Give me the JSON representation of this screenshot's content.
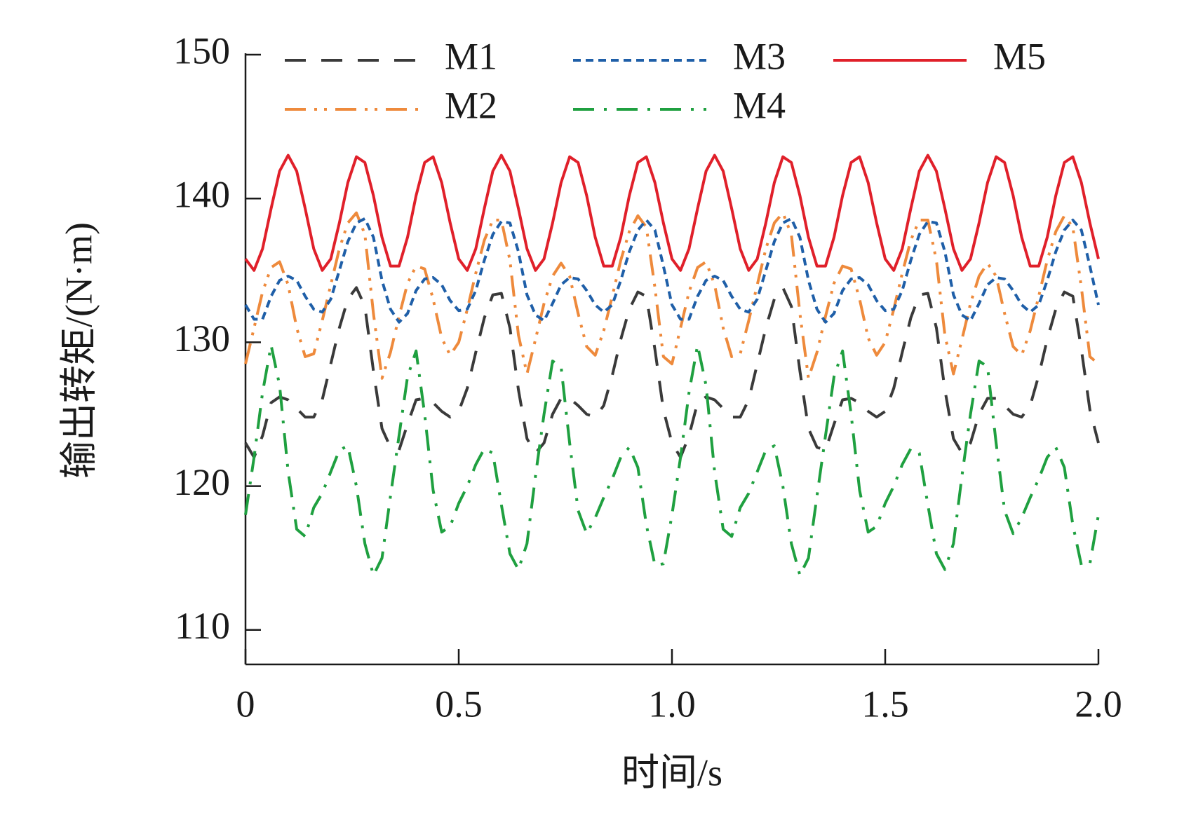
{
  "chart_data": {
    "type": "line",
    "xlabel": "时间/s",
    "ylabel": "输出转矩/(N·m)",
    "xlim": [
      0,
      2
    ],
    "ylim": [
      107.6,
      150
    ],
    "xticks": [
      0,
      0.5,
      {
        "value": 1,
        "label": "1.0"
      },
      1.5,
      {
        "value": 2,
        "label": "2.0"
      }
    ],
    "yticks": [
      110,
      120,
      130,
      140,
      150
    ],
    "x": [
      0,
      0.02,
      0.04,
      0.06,
      0.08,
      0.1,
      0.12,
      0.14,
      0.16,
      0.18,
      0.2,
      0.22,
      0.24,
      0.26,
      0.28,
      0.3,
      0.32,
      0.34,
      0.36,
      0.38,
      0.4,
      0.42,
      0.44,
      0.46,
      0.48,
      0.5,
      0.52,
      0.54,
      0.56,
      0.58,
      0.6,
      0.62,
      0.64,
      0.66,
      0.68,
      0.7,
      0.72,
      0.74,
      0.76,
      0.78,
      0.8,
      0.82,
      0.84,
      0.86,
      0.88,
      0.9,
      0.92,
      0.94,
      0.96,
      0.98,
      1,
      1.02,
      1.04,
      1.06,
      1.08,
      1.1,
      1.12,
      1.14,
      1.16,
      1.18,
      1.2,
      1.22,
      1.24,
      1.26,
      1.28,
      1.3,
      1.32,
      1.34,
      1.36,
      1.38,
      1.4,
      1.42,
      1.44,
      1.46,
      1.48,
      1.5,
      1.52,
      1.54,
      1.56,
      1.58,
      1.6,
      1.62,
      1.64,
      1.66,
      1.68,
      1.7,
      1.72,
      1.74,
      1.76,
      1.78,
      1.8,
      1.82,
      1.84,
      1.86,
      1.88,
      1.9,
      1.92,
      1.94,
      1.96,
      1.98,
      2
    ],
    "series": [
      {
        "name": "M1",
        "color": "#3a3a3a",
        "linestyle": "dashed",
        "values": [
          123.0,
          122.0,
          123.5,
          125.8,
          126.2,
          126.0,
          125.4,
          124.8,
          124.8,
          126.0,
          128.5,
          131.0,
          133.0,
          133.8,
          132.5,
          128.0,
          124.0,
          122.7,
          122.5,
          124.3,
          126.0,
          126.1,
          125.8,
          125.2,
          124.8,
          125.2,
          126.8,
          129.3,
          131.7,
          133.3,
          133.4,
          131.0,
          126.7,
          123.3,
          122.3,
          123.0,
          125.0,
          126.1,
          126.1,
          125.6,
          125.0,
          124.8,
          125.6,
          127.7,
          130.2,
          132.3,
          133.5,
          133.2,
          129.5,
          125.3,
          123.0,
          122.0,
          123.5,
          125.8,
          126.2,
          126.0,
          125.4,
          124.8,
          124.8,
          126.0,
          128.5,
          131.0,
          133.0,
          133.8,
          132.5,
          128.0,
          124.0,
          122.7,
          122.5,
          124.3,
          126.0,
          126.1,
          125.8,
          125.2,
          124.8,
          125.2,
          126.8,
          129.3,
          131.7,
          133.3,
          133.4,
          131.0,
          126.7,
          123.3,
          122.3,
          123.0,
          125.0,
          126.1,
          126.1,
          125.6,
          125.0,
          124.8,
          125.6,
          127.7,
          130.2,
          132.3,
          133.5,
          133.2,
          129.5,
          125.3,
          123.0
        ]
      },
      {
        "name": "M2",
        "color": "#ee8a3c",
        "linestyle": "dash-dot-dot",
        "values": [
          128.5,
          131.0,
          133.5,
          135.2,
          135.6,
          134.0,
          131.0,
          129.0,
          129.2,
          131.5,
          134.0,
          136.5,
          138.3,
          139.0,
          137.5,
          132.0,
          127.5,
          129.3,
          131.8,
          134.1,
          135.3,
          135.1,
          133.0,
          130.3,
          129.1,
          130.0,
          132.3,
          134.8,
          137.1,
          138.5,
          138.5,
          135.7,
          130.5,
          127.8,
          130.2,
          132.7,
          134.6,
          135.5,
          134.6,
          132.0,
          129.7,
          129.1,
          130.8,
          133.2,
          135.7,
          137.7,
          138.8,
          138.0,
          133.8,
          129.0,
          128.5,
          131.0,
          133.5,
          135.2,
          135.6,
          134.0,
          131.0,
          129.0,
          129.2,
          131.5,
          134.0,
          136.5,
          138.3,
          139.0,
          137.5,
          132.0,
          127.5,
          129.3,
          131.8,
          134.1,
          135.3,
          135.1,
          133.0,
          130.3,
          129.1,
          130.0,
          132.3,
          134.8,
          137.1,
          138.5,
          138.5,
          135.7,
          130.5,
          127.8,
          130.2,
          132.7,
          134.6,
          135.5,
          134.6,
          132.0,
          129.7,
          129.1,
          130.8,
          133.2,
          135.7,
          137.7,
          138.8,
          138.0,
          133.8,
          129.0,
          128.5
        ]
      },
      {
        "name": "M3",
        "color": "#1f5fa8",
        "linestyle": "short-dashed",
        "values": [
          132.6,
          131.6,
          131.6,
          133.2,
          134.3,
          134.6,
          134.3,
          133.2,
          132.3,
          132.1,
          133.0,
          135.0,
          137.0,
          138.3,
          138.6,
          137.3,
          134.3,
          132.3,
          131.4,
          132.0,
          133.6,
          134.4,
          134.5,
          134.0,
          132.9,
          132.2,
          132.3,
          133.6,
          135.7,
          137.5,
          138.4,
          138.3,
          136.3,
          133.3,
          131.9,
          131.5,
          132.7,
          134.0,
          134.5,
          134.4,
          133.6,
          132.6,
          132.1,
          132.6,
          134.3,
          136.3,
          137.8,
          138.5,
          137.8,
          135.3,
          132.6,
          131.6,
          131.6,
          133.2,
          134.3,
          134.6,
          134.3,
          133.2,
          132.3,
          132.1,
          133.0,
          135.0,
          137.0,
          138.3,
          138.6,
          137.3,
          134.3,
          132.3,
          131.4,
          132.0,
          133.6,
          134.4,
          134.5,
          134.0,
          132.9,
          132.2,
          132.3,
          133.6,
          135.7,
          137.5,
          138.4,
          138.3,
          136.3,
          133.3,
          131.9,
          131.5,
          132.7,
          134.0,
          134.5,
          134.4,
          133.6,
          132.6,
          132.1,
          132.6,
          134.3,
          136.3,
          137.8,
          138.5,
          137.8,
          135.3,
          132.6
        ]
      },
      {
        "name": "M4",
        "color": "#1fa040",
        "linestyle": "dash-dot",
        "values": [
          118.0,
          122.0,
          126.5,
          129.8,
          127.0,
          121.0,
          117.0,
          116.5,
          118.5,
          119.5,
          121.0,
          122.5,
          122.8,
          120.0,
          116.0,
          113.8,
          115.0,
          119.3,
          123.5,
          127.6,
          129.4,
          125.0,
          119.7,
          116.8,
          117.2,
          118.8,
          120.0,
          121.5,
          122.6,
          122.3,
          118.7,
          115.3,
          114.2,
          116.0,
          120.7,
          125.0,
          128.7,
          128.3,
          123.0,
          118.3,
          116.7,
          117.8,
          119.2,
          120.5,
          122.0,
          122.7,
          121.3,
          117.3,
          114.5,
          114.6,
          118.0,
          122.0,
          126.5,
          129.8,
          127.0,
          121.0,
          117.0,
          116.5,
          118.5,
          119.5,
          121.0,
          122.5,
          122.8,
          120.0,
          116.0,
          113.8,
          115.0,
          119.3,
          123.5,
          127.6,
          129.4,
          125.0,
          119.7,
          116.8,
          117.2,
          118.8,
          120.0,
          121.5,
          122.6,
          122.3,
          118.7,
          115.3,
          114.2,
          116.0,
          120.7,
          125.0,
          128.7,
          128.3,
          123.0,
          118.3,
          116.7,
          117.8,
          119.2,
          120.5,
          122.0,
          122.7,
          121.3,
          117.3,
          114.5,
          114.6,
          118.0
        ]
      },
      {
        "name": "M5",
        "color": "#e0202a",
        "linestyle": "solid",
        "values": [
          135.8,
          135.0,
          136.5,
          139.3,
          141.9,
          143.0,
          141.9,
          139.3,
          136.5,
          135.0,
          135.8,
          138.3,
          141.1,
          142.9,
          142.5,
          140.2,
          137.3,
          135.3,
          135.3,
          137.3,
          140.2,
          142.5,
          142.9,
          141.1,
          138.3,
          135.8,
          135.0,
          136.5,
          139.3,
          141.9,
          143.0,
          141.9,
          139.3,
          136.5,
          135.0,
          135.8,
          138.3,
          141.1,
          142.9,
          142.5,
          140.2,
          137.3,
          135.3,
          135.3,
          137.3,
          140.2,
          142.5,
          142.9,
          141.1,
          138.3,
          135.8,
          135.0,
          136.5,
          139.3,
          141.9,
          143.0,
          141.9,
          139.3,
          136.5,
          135.0,
          135.8,
          138.3,
          141.1,
          142.9,
          142.5,
          140.2,
          137.3,
          135.3,
          135.3,
          137.3,
          140.2,
          142.5,
          142.9,
          141.1,
          138.3,
          135.8,
          135.0,
          136.5,
          139.3,
          141.9,
          143.0,
          141.9,
          139.3,
          136.5,
          135.0,
          135.8,
          138.3,
          141.1,
          142.9,
          142.5,
          140.2,
          137.3,
          135.3,
          135.3,
          137.3,
          140.2,
          142.5,
          142.9,
          141.1,
          138.3,
          135.8
        ]
      }
    ]
  }
}
